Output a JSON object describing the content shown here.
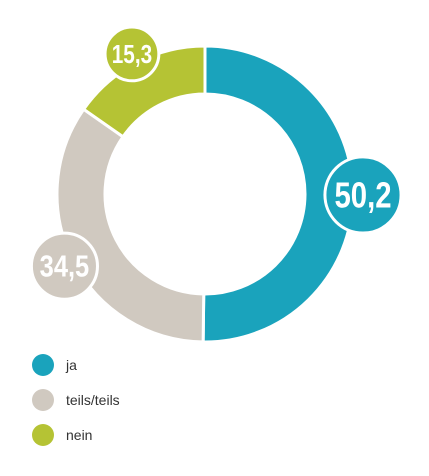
{
  "chart_data": {
    "type": "pie",
    "donut": true,
    "categories": [
      "ja",
      "teils/teils",
      "nein"
    ],
    "values": [
      50.2,
      34.5,
      15.3
    ],
    "value_labels": [
      "50,2",
      "34,5",
      "15,3"
    ],
    "colors": [
      "#1aa3bc",
      "#d0c9c0",
      "#b5c334"
    ]
  }
}
